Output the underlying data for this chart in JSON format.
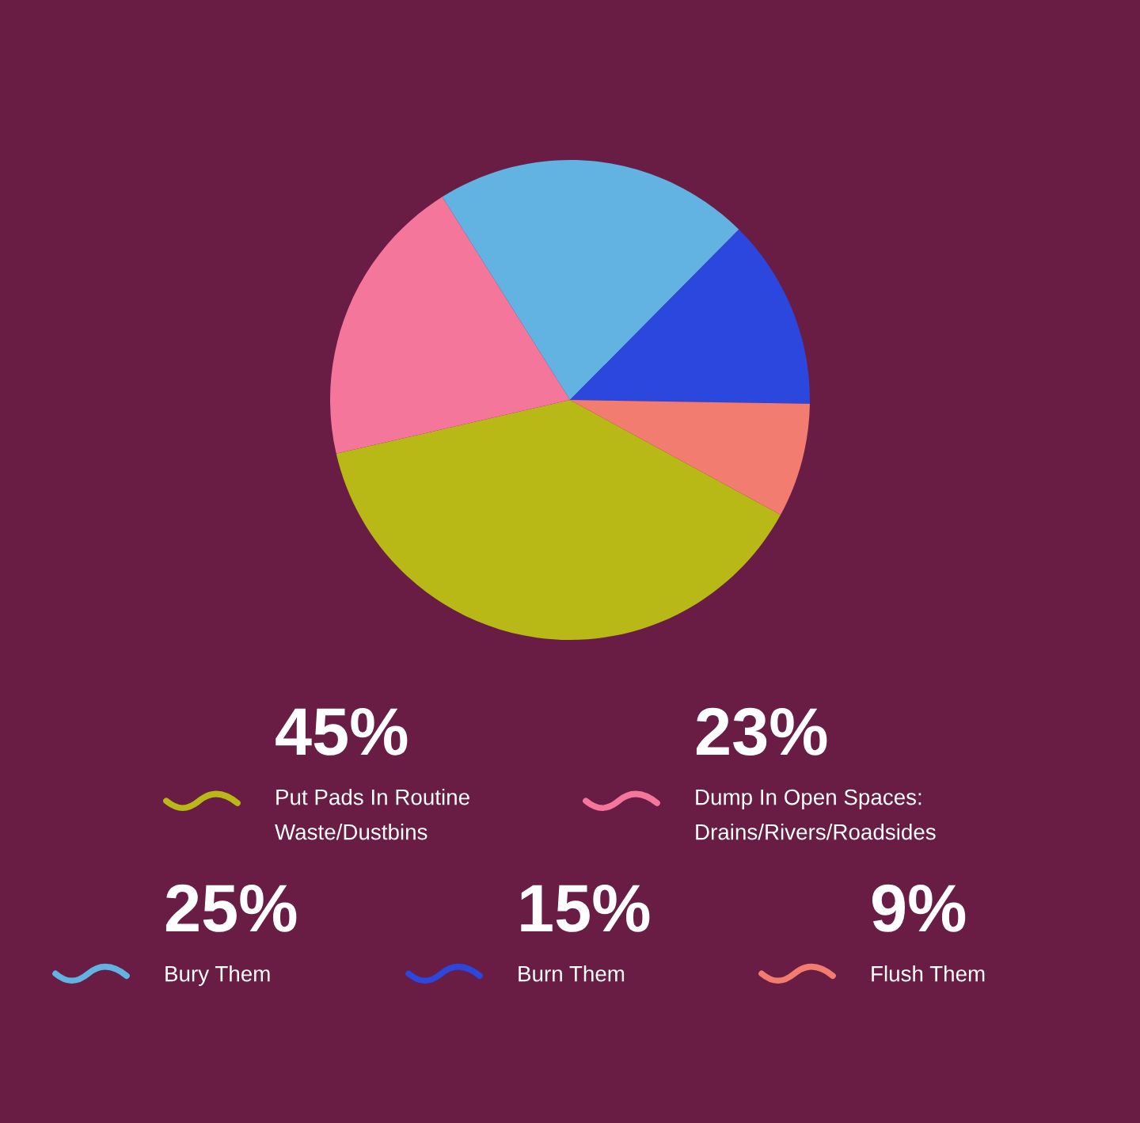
{
  "chart_data": {
    "type": "pie",
    "categories": [
      "Put Pads In Routine\nWaste/Dustbins",
      "Dump In Open Spaces:\nDrains/Rivers/Roadsides",
      "Bury Them",
      "Burn Them",
      "Flush Them"
    ],
    "values": [
      45,
      23,
      25,
      15,
      9
    ],
    "value_labels": [
      "45%",
      "23%",
      "25%",
      "15%",
      "9%"
    ],
    "colors": [
      "#b8b916",
      "#f5769b",
      "#62b2e2",
      "#2b47de",
      "#f37c71"
    ],
    "legend": "bottom"
  }
}
